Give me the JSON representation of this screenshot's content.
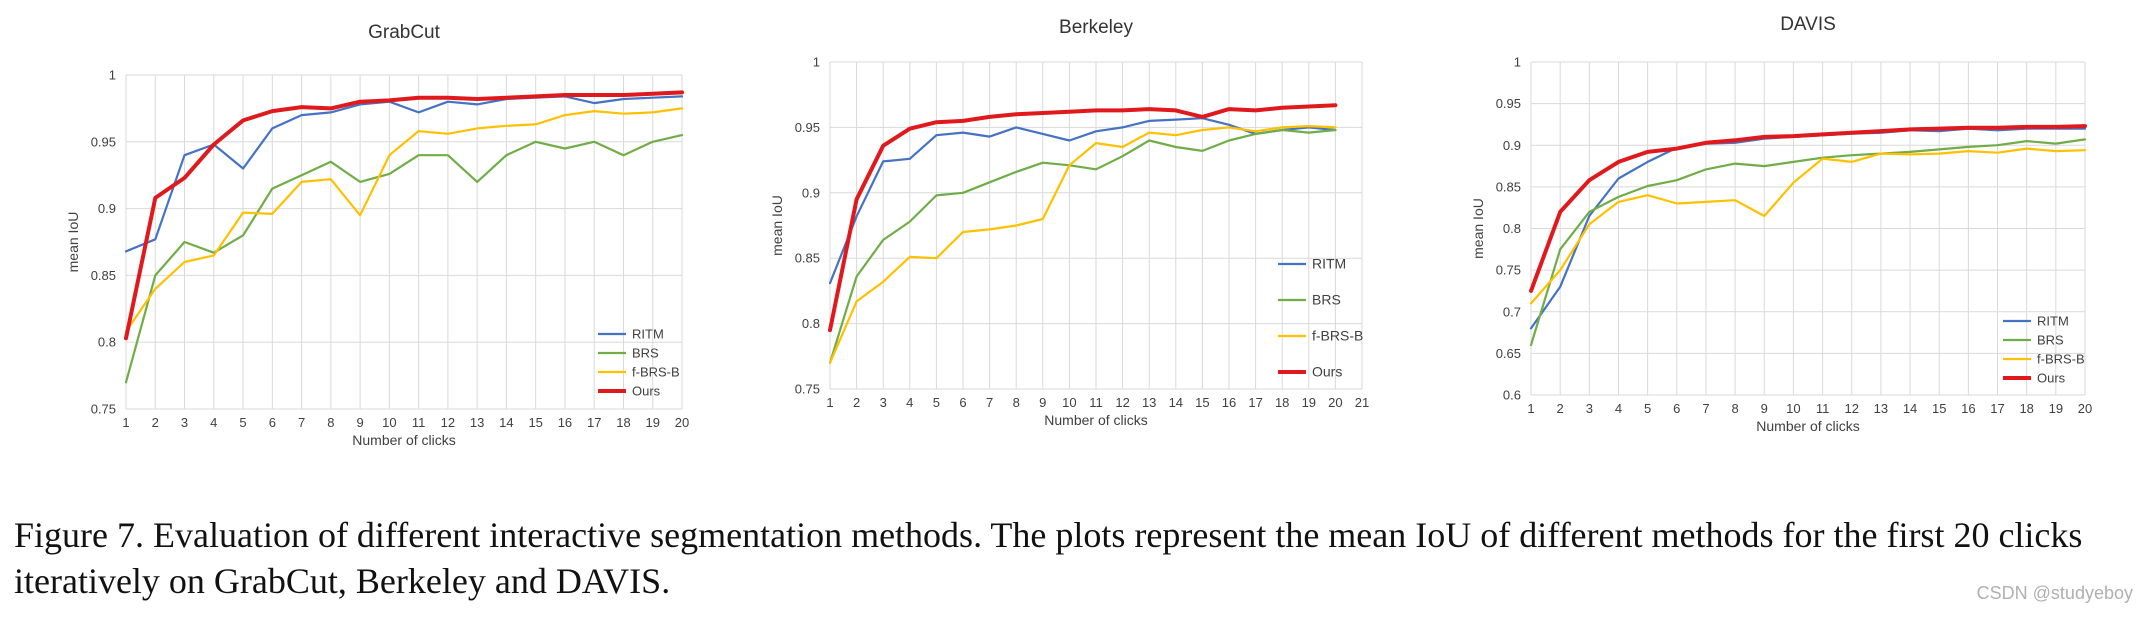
{
  "colors": {
    "RITM": "#4472c4",
    "BRS": "#70ad47",
    "f-BRS-B": "#ffc000",
    "Ours": "#e0191d",
    "grid": "#d9d9d9",
    "axis_text": "#404040"
  },
  "caption": "Figure 7. Evaluation of different interactive segmentation methods. The plots represent the mean IoU of different methods for the first 20 clicks iteratively on GrabCut, Berkeley and DAVIS.",
  "watermark": "CSDN @studyeboy",
  "chart_data": [
    {
      "type": "line",
      "title": "GrabCut",
      "xlabel": "Number of clicks",
      "ylabel": "mean IoU",
      "x": [
        1,
        2,
        3,
        4,
        5,
        6,
        7,
        8,
        9,
        10,
        11,
        12,
        13,
        14,
        15,
        16,
        17,
        18,
        19,
        20
      ],
      "xlim": [
        1,
        20
      ],
      "xticks": [
        "1",
        "2",
        "3",
        "4",
        "5",
        "6",
        "7",
        "8",
        "9",
        "10",
        "11",
        "12",
        "13",
        "14",
        "15",
        "16",
        "17",
        "18",
        "19",
        "20"
      ],
      "ylim": [
        0.75,
        1
      ],
      "yticks": [
        "0.75",
        "0.8",
        "0.85",
        "0.9",
        "0.95",
        "1"
      ],
      "grid": true,
      "legend_position": "bottom-right",
      "series": [
        {
          "name": "RITM",
          "values": [
            0.868,
            0.877,
            0.94,
            0.948,
            0.93,
            0.96,
            0.97,
            0.972,
            0.978,
            0.98,
            0.972,
            0.98,
            0.978,
            0.982,
            0.983,
            0.984,
            0.979,
            0.982,
            0.983,
            0.984
          ]
        },
        {
          "name": "BRS",
          "values": [
            0.77,
            0.85,
            0.875,
            0.867,
            0.88,
            0.915,
            0.925,
            0.935,
            0.92,
            0.926,
            0.94,
            0.94,
            0.92,
            0.94,
            0.95,
            0.945,
            0.95,
            0.94,
            0.95,
            0.955
          ]
        },
        {
          "name": "f-BRS-B",
          "values": [
            0.808,
            0.84,
            0.86,
            0.865,
            0.897,
            0.896,
            0.92,
            0.922,
            0.895,
            0.94,
            0.958,
            0.956,
            0.96,
            0.962,
            0.963,
            0.97,
            0.973,
            0.971,
            0.972,
            0.975
          ]
        },
        {
          "name": "Ours",
          "values": [
            0.803,
            0.908,
            0.923,
            0.948,
            0.966,
            0.973,
            0.976,
            0.975,
            0.98,
            0.981,
            0.983,
            0.983,
            0.982,
            0.983,
            0.984,
            0.985,
            0.985,
            0.985,
            0.986,
            0.987
          ]
        }
      ]
    },
    {
      "type": "line",
      "title": "Berkeley",
      "xlabel": "Number of clicks",
      "ylabel": "mean IoU",
      "x": [
        1,
        2,
        3,
        4,
        5,
        6,
        7,
        8,
        9,
        10,
        11,
        12,
        13,
        14,
        15,
        16,
        17,
        18,
        19,
        20
      ],
      "xlim": [
        1,
        21
      ],
      "xticks": [
        "1",
        "2",
        "3",
        "4",
        "5",
        "6",
        "7",
        "8",
        "9",
        "10",
        "11",
        "12",
        "13",
        "14",
        "15",
        "16",
        "17",
        "18",
        "19",
        "20",
        "21"
      ],
      "ylim": [
        0.75,
        1
      ],
      "yticks": [
        "0.75",
        "0.8",
        "0.85",
        "0.9",
        "0.95",
        "1"
      ],
      "grid": true,
      "legend_position": "right",
      "series": [
        {
          "name": "RITM",
          "values": [
            0.831,
            0.882,
            0.924,
            0.926,
            0.944,
            0.946,
            0.943,
            0.95,
            0.945,
            0.94,
            0.947,
            0.95,
            0.955,
            0.956,
            0.957,
            0.952,
            0.945,
            0.948,
            0.95,
            0.948
          ]
        },
        {
          "name": "BRS",
          "values": [
            0.77,
            0.836,
            0.864,
            0.878,
            0.898,
            0.9,
            0.908,
            0.916,
            0.923,
            0.921,
            0.918,
            0.928,
            0.94,
            0.935,
            0.932,
            0.94,
            0.945,
            0.948,
            0.946,
            0.948
          ]
        },
        {
          "name": "f-BRS-B",
          "values": [
            0.77,
            0.817,
            0.832,
            0.851,
            0.85,
            0.87,
            0.872,
            0.875,
            0.88,
            0.921,
            0.938,
            0.935,
            0.946,
            0.944,
            0.948,
            0.95,
            0.947,
            0.95,
            0.951,
            0.95
          ]
        },
        {
          "name": "Ours",
          "values": [
            0.795,
            0.895,
            0.936,
            0.949,
            0.954,
            0.955,
            0.958,
            0.96,
            0.961,
            0.962,
            0.963,
            0.963,
            0.964,
            0.963,
            0.958,
            0.964,
            0.963,
            0.965,
            0.966,
            0.967
          ]
        }
      ]
    },
    {
      "type": "line",
      "title": "DAVIS",
      "xlabel": "Number of clicks",
      "ylabel": "mean IoU",
      "x": [
        1,
        2,
        3,
        4,
        5,
        6,
        7,
        8,
        9,
        10,
        11,
        12,
        13,
        14,
        15,
        16,
        17,
        18,
        19,
        20
      ],
      "xlim": [
        1,
        20
      ],
      "xticks": [
        "1",
        "2",
        "3",
        "4",
        "5",
        "6",
        "7",
        "8",
        "9",
        "10",
        "11",
        "12",
        "13",
        "14",
        "15",
        "16",
        "17",
        "18",
        "19",
        "20"
      ],
      "ylim": [
        0.6,
        1
      ],
      "yticks": [
        "0.6",
        "0.65",
        "0.7",
        "0.75",
        "0.8",
        "0.85",
        "0.9",
        "0.95",
        "1"
      ],
      "grid": true,
      "legend_position": "bottom-right",
      "series": [
        {
          "name": "RITM",
          "values": [
            0.68,
            0.73,
            0.815,
            0.86,
            0.88,
            0.897,
            0.902,
            0.903,
            0.908,
            0.91,
            0.912,
            0.914,
            0.915,
            0.918,
            0.917,
            0.92,
            0.918,
            0.92,
            0.92,
            0.92
          ]
        },
        {
          "name": "BRS",
          "values": [
            0.66,
            0.775,
            0.82,
            0.838,
            0.851,
            0.858,
            0.871,
            0.878,
            0.875,
            0.88,
            0.885,
            0.888,
            0.89,
            0.892,
            0.895,
            0.898,
            0.9,
            0.905,
            0.902,
            0.907
          ]
        },
        {
          "name": "f-BRS-B",
          "values": [
            0.71,
            0.75,
            0.805,
            0.832,
            0.84,
            0.83,
            0.832,
            0.834,
            0.815,
            0.855,
            0.884,
            0.88,
            0.89,
            0.889,
            0.89,
            0.893,
            0.891,
            0.896,
            0.893,
            0.894
          ]
        },
        {
          "name": "Ours",
          "values": [
            0.725,
            0.82,
            0.858,
            0.88,
            0.892,
            0.896,
            0.903,
            0.906,
            0.91,
            0.911,
            0.913,
            0.915,
            0.917,
            0.919,
            0.92,
            0.921,
            0.921,
            0.922,
            0.922,
            0.923
          ]
        }
      ]
    }
  ]
}
